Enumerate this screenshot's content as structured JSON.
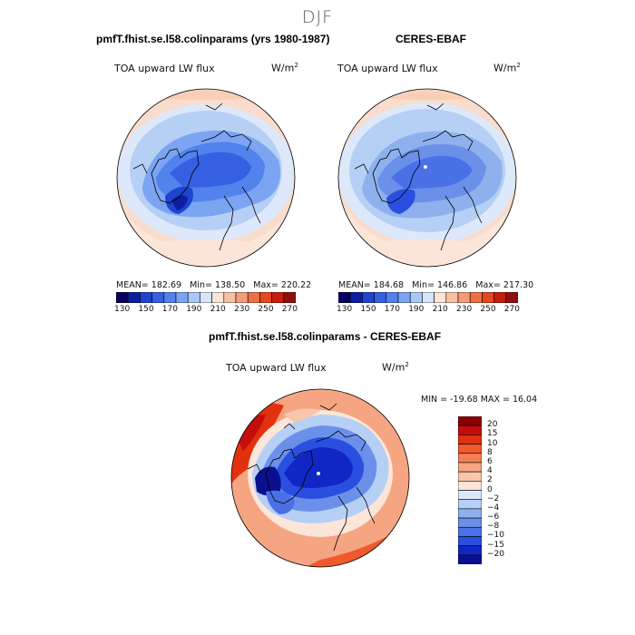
{
  "page": {
    "title": "DJF"
  },
  "panels": [
    {
      "title": "pmfT.fhist.se.l58.colinparams (yrs 1980-1987)",
      "variable": "TOA upward LW flux",
      "units": "W/m",
      "units_exp": "2",
      "stats": {
        "mean_label": "MEAN=",
        "mean": "182.69",
        "min_label": "Min=",
        "min": "138.50",
        "max_label": "Max=",
        "max": "220.22"
      }
    },
    {
      "title": "CERES-EBAF",
      "variable": "TOA upward LW flux",
      "units": "W/m",
      "units_exp": "2",
      "stats": {
        "mean_label": "MEAN=",
        "mean": "184.68",
        "min_label": "Min=",
        "min": "146.86",
        "max_label": "Max=",
        "max": "217.30"
      }
    },
    {
      "title": "pmfT.fhist.se.l58.colinparams - CERES-EBAF",
      "variable": "TOA upward LW flux",
      "units": "W/m",
      "units_exp": "2",
      "stats": {
        "text": "MIN = -19.68 MAX =  16.04"
      }
    }
  ],
  "colorbar_abs": {
    "colors": [
      "#08005e",
      "#0d1fa0",
      "#1f44d0",
      "#3560e2",
      "#5282ec",
      "#7ba4f2",
      "#a9c7f7",
      "#d6e6fb",
      "#fbe4d8",
      "#f7c0a4",
      "#f29c7a",
      "#ec6f48",
      "#e34820",
      "#c51e0c",
      "#8f0f0c"
    ],
    "labels": [
      "130",
      "150",
      "170",
      "190",
      "210",
      "230",
      "250",
      "270"
    ]
  },
  "colorbar_diff": {
    "colors": [
      "#8a0000",
      "#c40e0e",
      "#e3310f",
      "#ef5a2c",
      "#f47f56",
      "#f6a582",
      "#f9c6ac",
      "#fbe6d9",
      "#dde9fb",
      "#b6cff5",
      "#8eb1ee",
      "#6a90ea",
      "#4a70e6",
      "#2a4fe0",
      "#1027c4",
      "#0a0f8e"
    ],
    "labels": [
      "20",
      "15",
      "10",
      "8",
      "6",
      "4",
      "2",
      "0",
      "−2",
      "−4",
      "−6",
      "−8",
      "−10",
      "−15",
      "−20"
    ]
  }
}
